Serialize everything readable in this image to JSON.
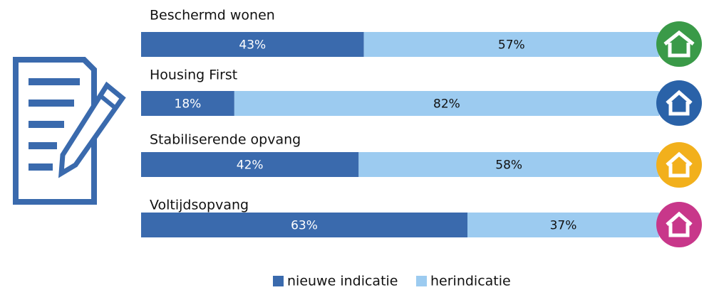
{
  "chart_data": {
    "type": "stacked-bar-horizontal",
    "categories": [
      "Beschermd wonen",
      "Housing First",
      "Stabiliserende opvang",
      "Voltijdsopvang"
    ],
    "series": [
      {
        "name": "nieuwe indicatie",
        "color": "#3a6aad",
        "values": [
          43,
          18,
          42,
          63
        ],
        "value_labels": [
          "43%",
          "18%",
          "42%",
          "63%"
        ]
      },
      {
        "name": "herindicatie",
        "color": "#9ccbf0",
        "values": [
          57,
          82,
          58,
          37
        ],
        "value_labels": [
          "57%",
          "82%",
          "58%",
          "37%"
        ]
      }
    ],
    "legend": "bottom"
  }
}
